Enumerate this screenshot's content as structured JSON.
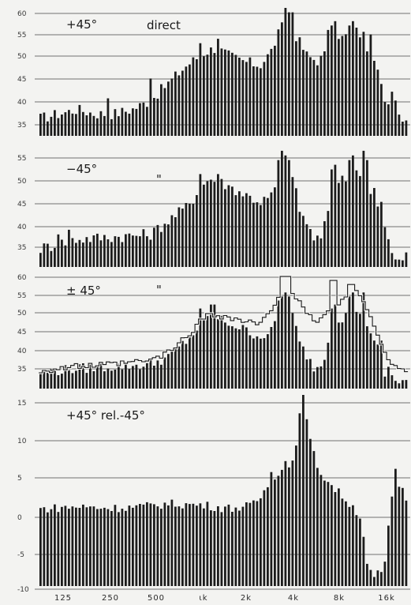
{
  "chart_data": [
    {
      "type": "bar",
      "label": "+45°",
      "annotation": "direct",
      "y_ticks": [
        "60",
        "55",
        "50",
        "45",
        "40",
        "35"
      ],
      "ylim": [
        32,
        61
      ],
      "grid": true,
      "anchors": [
        [
          0,
          36
        ],
        [
          5,
          37
        ],
        [
          10,
          38
        ],
        [
          15,
          37
        ],
        [
          20,
          37
        ],
        [
          25,
          38
        ],
        [
          30,
          40
        ],
        [
          35,
          44
        ],
        [
          40,
          48
        ],
        [
          45,
          51
        ],
        [
          48,
          52
        ],
        [
          52,
          50
        ],
        [
          55,
          49
        ],
        [
          60,
          48
        ],
        [
          63,
          51
        ],
        [
          65,
          55
        ],
        [
          67,
          58
        ],
        [
          69,
          56
        ],
        [
          71,
          53
        ],
        [
          73,
          50
        ],
        [
          76,
          49
        ],
        [
          80,
          52
        ],
        [
          82,
          54
        ],
        [
          84,
          55
        ],
        [
          86,
          56
        ],
        [
          88,
          55
        ],
        [
          90,
          51
        ],
        [
          92,
          46
        ],
        [
          94,
          41
        ],
        [
          96,
          38
        ],
        [
          98,
          37
        ],
        [
          100,
          36
        ]
      ],
      "spikes": [
        [
          18,
          40.5
        ],
        [
          30,
          45
        ],
        [
          44,
          53
        ],
        [
          49,
          54
        ],
        [
          67,
          61
        ],
        [
          68,
          60
        ],
        [
          69,
          60
        ],
        [
          79,
          56
        ],
        [
          80,
          57
        ],
        [
          81,
          58
        ],
        [
          84,
          57
        ],
        [
          85,
          58
        ],
        [
          90,
          55
        ],
        [
          91,
          49
        ],
        [
          92,
          47
        ],
        [
          96,
          42
        ],
        [
          97,
          40
        ]
      ]
    },
    {
      "type": "bar",
      "label": "−45°",
      "annotation": "\"",
      "y_ticks": [
        "55",
        "50",
        "45",
        "40",
        "35"
      ],
      "ylim": [
        32,
        57.5
      ],
      "grid": true,
      "anchors": [
        [
          0,
          36
        ],
        [
          10,
          38
        ],
        [
          20,
          38.5
        ],
        [
          30,
          39
        ],
        [
          35,
          42
        ],
        [
          40,
          45
        ],
        [
          44,
          49
        ],
        [
          46,
          51
        ],
        [
          50,
          50
        ],
        [
          55,
          48
        ],
        [
          60,
          46
        ],
        [
          63,
          47
        ],
        [
          65,
          51
        ],
        [
          67,
          54
        ],
        [
          69,
          51
        ],
        [
          71,
          44
        ],
        [
          73,
          41
        ],
        [
          75,
          38
        ],
        [
          77,
          38
        ],
        [
          79,
          46
        ],
        [
          81,
          50
        ],
        [
          83,
          51
        ],
        [
          85,
          52
        ],
        [
          87,
          53
        ],
        [
          89,
          50
        ],
        [
          91,
          46
        ],
        [
          93,
          43
        ],
        [
          95,
          38
        ],
        [
          97,
          34
        ],
        [
          100,
          34
        ]
      ],
      "spikes": [
        [
          5,
          39
        ],
        [
          8,
          40
        ],
        [
          44,
          52
        ],
        [
          49,
          52
        ],
        [
          65,
          55
        ],
        [
          66,
          57
        ],
        [
          67,
          56
        ],
        [
          68,
          55
        ],
        [
          80,
          53
        ],
        [
          81,
          54
        ],
        [
          84,
          55
        ],
        [
          85,
          56
        ],
        [
          88,
          57
        ],
        [
          89,
          55
        ],
        [
          91,
          49
        ],
        [
          93,
          46
        ],
        [
          96,
          35
        ]
      ]
    },
    {
      "type": "bar",
      "label": "± 45°",
      "annotation": "\"",
      "y_ticks": [
        "60",
        "55",
        "50",
        "45",
        "40",
        "35"
      ],
      "ylim": [
        32,
        61
      ],
      "grid": true,
      "anchors": [
        [
          0,
          36
        ],
        [
          10,
          37
        ],
        [
          20,
          37.5
        ],
        [
          30,
          38
        ],
        [
          35,
          40
        ],
        [
          40,
          44
        ],
        [
          44,
          48
        ],
        [
          46,
          50
        ],
        [
          50,
          49
        ],
        [
          55,
          47
        ],
        [
          60,
          45
        ],
        [
          63,
          46
        ],
        [
          65,
          50
        ],
        [
          67,
          53
        ],
        [
          69,
          50
        ],
        [
          71,
          43
        ],
        [
          73,
          40
        ],
        [
          75,
          37
        ],
        [
          77,
          38
        ],
        [
          79,
          45
        ],
        [
          81,
          49
        ],
        [
          83,
          50
        ],
        [
          85,
          51
        ],
        [
          87,
          52
        ],
        [
          89,
          49
        ],
        [
          91,
          45
        ],
        [
          93,
          42
        ],
        [
          95,
          37
        ],
        [
          97,
          34
        ],
        [
          100,
          34
        ]
      ],
      "spikes": [
        [
          44,
          52
        ],
        [
          47,
          53
        ],
        [
          48,
          53
        ],
        [
          65,
          54
        ],
        [
          66,
          55
        ],
        [
          67,
          56
        ],
        [
          68,
          55
        ],
        [
          80,
          52
        ],
        [
          81,
          53
        ],
        [
          84,
          55
        ],
        [
          85,
          56
        ],
        [
          88,
          56
        ],
        [
          91,
          44
        ],
        [
          92,
          43
        ],
        [
          93,
          44
        ],
        [
          94,
          35
        ]
      ],
      "outline_anchors": [
        [
          0,
          36.5
        ],
        [
          10,
          37.5
        ],
        [
          20,
          38
        ],
        [
          30,
          39
        ],
        [
          35,
          41
        ],
        [
          40,
          45
        ],
        [
          44,
          49
        ],
        [
          46,
          51
        ],
        [
          50,
          50
        ],
        [
          55,
          49
        ],
        [
          60,
          48
        ],
        [
          63,
          51
        ],
        [
          65,
          55
        ],
        [
          67,
          58
        ],
        [
          69,
          56
        ],
        [
          71,
          53
        ],
        [
          73,
          50
        ],
        [
          76,
          49
        ],
        [
          80,
          52
        ],
        [
          82,
          54
        ],
        [
          84,
          55
        ],
        [
          86,
          56
        ],
        [
          88,
          55
        ],
        [
          90,
          51
        ],
        [
          92,
          46
        ],
        [
          94,
          41
        ],
        [
          96,
          38
        ],
        [
          98,
          37
        ],
        [
          100,
          36
        ]
      ],
      "outline_spikes": [
        [
          66,
          60
        ],
        [
          67,
          60
        ],
        [
          68,
          60
        ],
        [
          80,
          59
        ],
        [
          81,
          59
        ],
        [
          84,
          58
        ],
        [
          85,
          58
        ]
      ]
    },
    {
      "type": "bar",
      "label": "+45° rel.-45°",
      "y_ticks": [
        "15",
        "10",
        "5",
        "0",
        "-5",
        "-10"
      ],
      "ylim": [
        -10,
        16
      ],
      "grid": true,
      "anchors": [
        [
          0,
          0.5
        ],
        [
          10,
          0.8
        ],
        [
          20,
          0.6
        ],
        [
          30,
          0.9
        ],
        [
          35,
          1.2
        ],
        [
          40,
          1.1
        ],
        [
          45,
          1.0
        ],
        [
          50,
          0.6
        ],
        [
          55,
          0.7
        ],
        [
          58,
          1.0
        ],
        [
          60,
          2.0
        ],
        [
          62,
          3.5
        ],
        [
          64,
          5.0
        ],
        [
          66,
          5.8
        ],
        [
          68,
          6.5
        ],
        [
          70,
          9.0
        ],
        [
          71,
          11.0
        ],
        [
          72,
          14.0
        ],
        [
          73,
          12.0
        ],
        [
          74,
          9.0
        ],
        [
          76,
          6.0
        ],
        [
          78,
          4.5
        ],
        [
          80,
          3.5
        ],
        [
          82,
          2.5
        ],
        [
          84,
          1.5
        ],
        [
          86,
          0.5
        ],
        [
          88,
          -1.0
        ],
        [
          89,
          -7.0
        ],
        [
          90,
          -8.0
        ],
        [
          91,
          -9.0
        ],
        [
          92,
          -8.5
        ],
        [
          93,
          -8.0
        ],
        [
          94,
          -8.0
        ],
        [
          95,
          -3.0
        ],
        [
          96,
          2.0
        ],
        [
          97,
          6.0
        ],
        [
          98,
          4.0
        ],
        [
          99,
          3.0
        ],
        [
          100,
          2.0
        ]
      ],
      "spikes": [
        [
          72,
          17
        ],
        [
          71,
          13.5
        ],
        [
          63,
          5.5
        ],
        [
          67,
          7
        ]
      ]
    }
  ],
  "x_ticks": [
    "125",
    "250",
    "500",
    "ιk",
    "2k",
    "4k",
    "8k",
    "16k"
  ]
}
